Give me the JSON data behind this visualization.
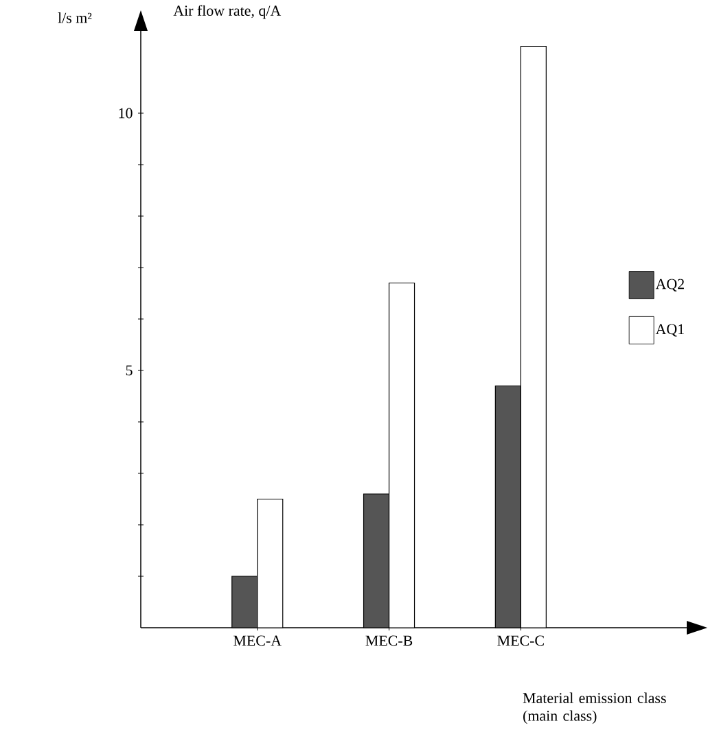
{
  "chart_data": {
    "type": "bar",
    "title": "Air flow rate, q/A",
    "ylabel": "l/s m²",
    "xlabel": "Material emission class (main class)",
    "categories": [
      "MEC-A",
      "MEC-B",
      "MEC-C"
    ],
    "series": [
      {
        "name": "AQ2",
        "color": "#555555",
        "values": [
          1.0,
          2.6,
          4.7
        ]
      },
      {
        "name": "AQ1",
        "color": "#ffffff",
        "values": [
          2.5,
          6.7,
          11.3
        ]
      }
    ],
    "ylim": [
      0,
      11.6
    ],
    "yticks": [
      {
        "value": 1,
        "label": null
      },
      {
        "value": 2,
        "label": null
      },
      {
        "value": 3,
        "label": null
      },
      {
        "value": 4,
        "label": null
      },
      5,
      {
        "value": 6,
        "label": null
      },
      {
        "value": 7,
        "label": null
      },
      {
        "value": 8,
        "label": null
      },
      {
        "value": 9,
        "label": null
      },
      10
    ],
    "legend": "right"
  }
}
